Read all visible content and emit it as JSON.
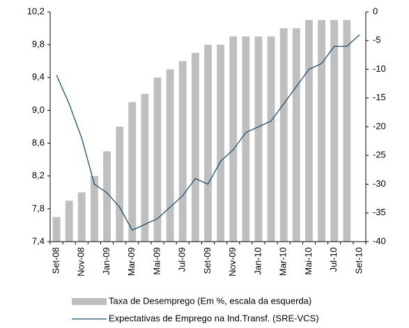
{
  "chart_data": {
    "type": "bar-line",
    "categories": [
      "Set-08",
      null,
      "Nov-08",
      null,
      "Jan-09",
      null,
      "Mar-09",
      null,
      "Mai-09",
      null,
      "Jul-09",
      null,
      "Set-09",
      null,
      "Nov-09",
      null,
      "Jan-10",
      null,
      "Mar-10",
      null,
      "Mai-10",
      null,
      "Jul-10",
      null,
      "Set-10"
    ],
    "series": [
      {
        "name": "Taxa de Desemprego (Em %, escala da esquerda)",
        "color": "#bfbfbf",
        "kind": "bar",
        "axis": "y",
        "values": [
          7.7,
          7.9,
          8.0,
          8.2,
          8.5,
          8.8,
          9.1,
          9.2,
          9.4,
          9.5,
          9.6,
          9.7,
          9.8,
          9.8,
          9.9,
          9.9,
          9.9,
          9.9,
          10.0,
          10.0,
          10.1,
          10.1,
          10.1,
          10.1,
          null
        ]
      },
      {
        "name": "Expectativas de Emprego na Ind.Transf. (SRE-VCS)",
        "color": "#1f4e6e",
        "kind": "line",
        "axis": "y2",
        "values": [
          -11,
          -16,
          -22,
          -30,
          -31.5,
          -34,
          -38,
          -37,
          -36,
          -34,
          -32,
          -29,
          -30,
          -26,
          -24,
          -21,
          -20,
          -19,
          -16,
          -13,
          -10,
          -9,
          -6,
          -6,
          -4
        ]
      }
    ],
    "ylim": [
      7.4,
      10.2
    ],
    "yticks": [
      {
        "value": 7.4,
        "label": "7,4"
      },
      {
        "value": 7.8,
        "label": "7,8"
      },
      {
        "value": 8.2,
        "label": "8,2"
      },
      {
        "value": 8.6,
        "label": "8,6"
      },
      {
        "value": 9.0,
        "label": "9,0"
      },
      {
        "value": 9.4,
        "label": "9,4"
      },
      {
        "value": 9.8,
        "label": "9,8"
      },
      {
        "value": 10.2,
        "label": "10,2"
      }
    ],
    "y2lim": [
      -40,
      0
    ],
    "y2ticks": [
      -40,
      -35,
      -30,
      -25,
      -20,
      -15,
      -10,
      -5,
      0
    ],
    "legend": "bottom"
  }
}
